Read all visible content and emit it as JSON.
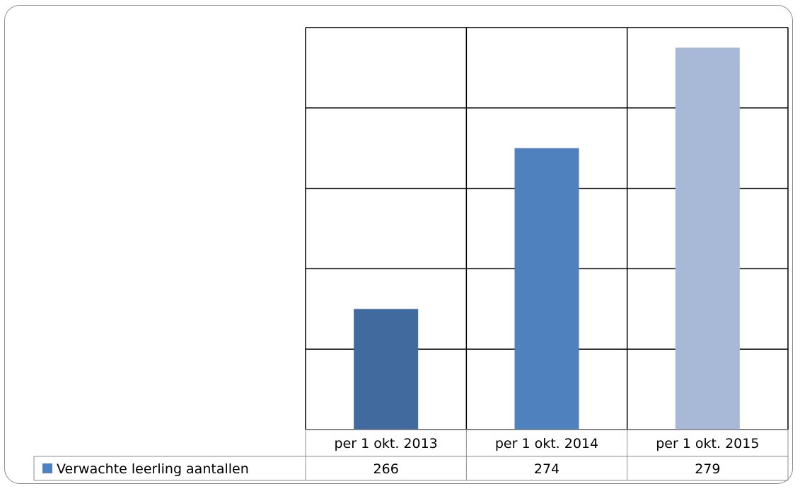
{
  "chart_data": {
    "type": "bar",
    "categories": [
      "per 1 okt. 2013",
      "per 1 okt. 2014",
      "per 1 okt. 2015"
    ],
    "series": [
      {
        "name": "Verwachte leerling aantallen",
        "values": [
          266,
          274,
          279
        ]
      }
    ],
    "bar_colors": [
      "#416b9e",
      "#4e81bd",
      "#a8b9d8"
    ],
    "ylim": [
      260,
      280
    ],
    "y_gridline_step": 4,
    "grid": true,
    "legend": "data-table",
    "data_table": true
  }
}
